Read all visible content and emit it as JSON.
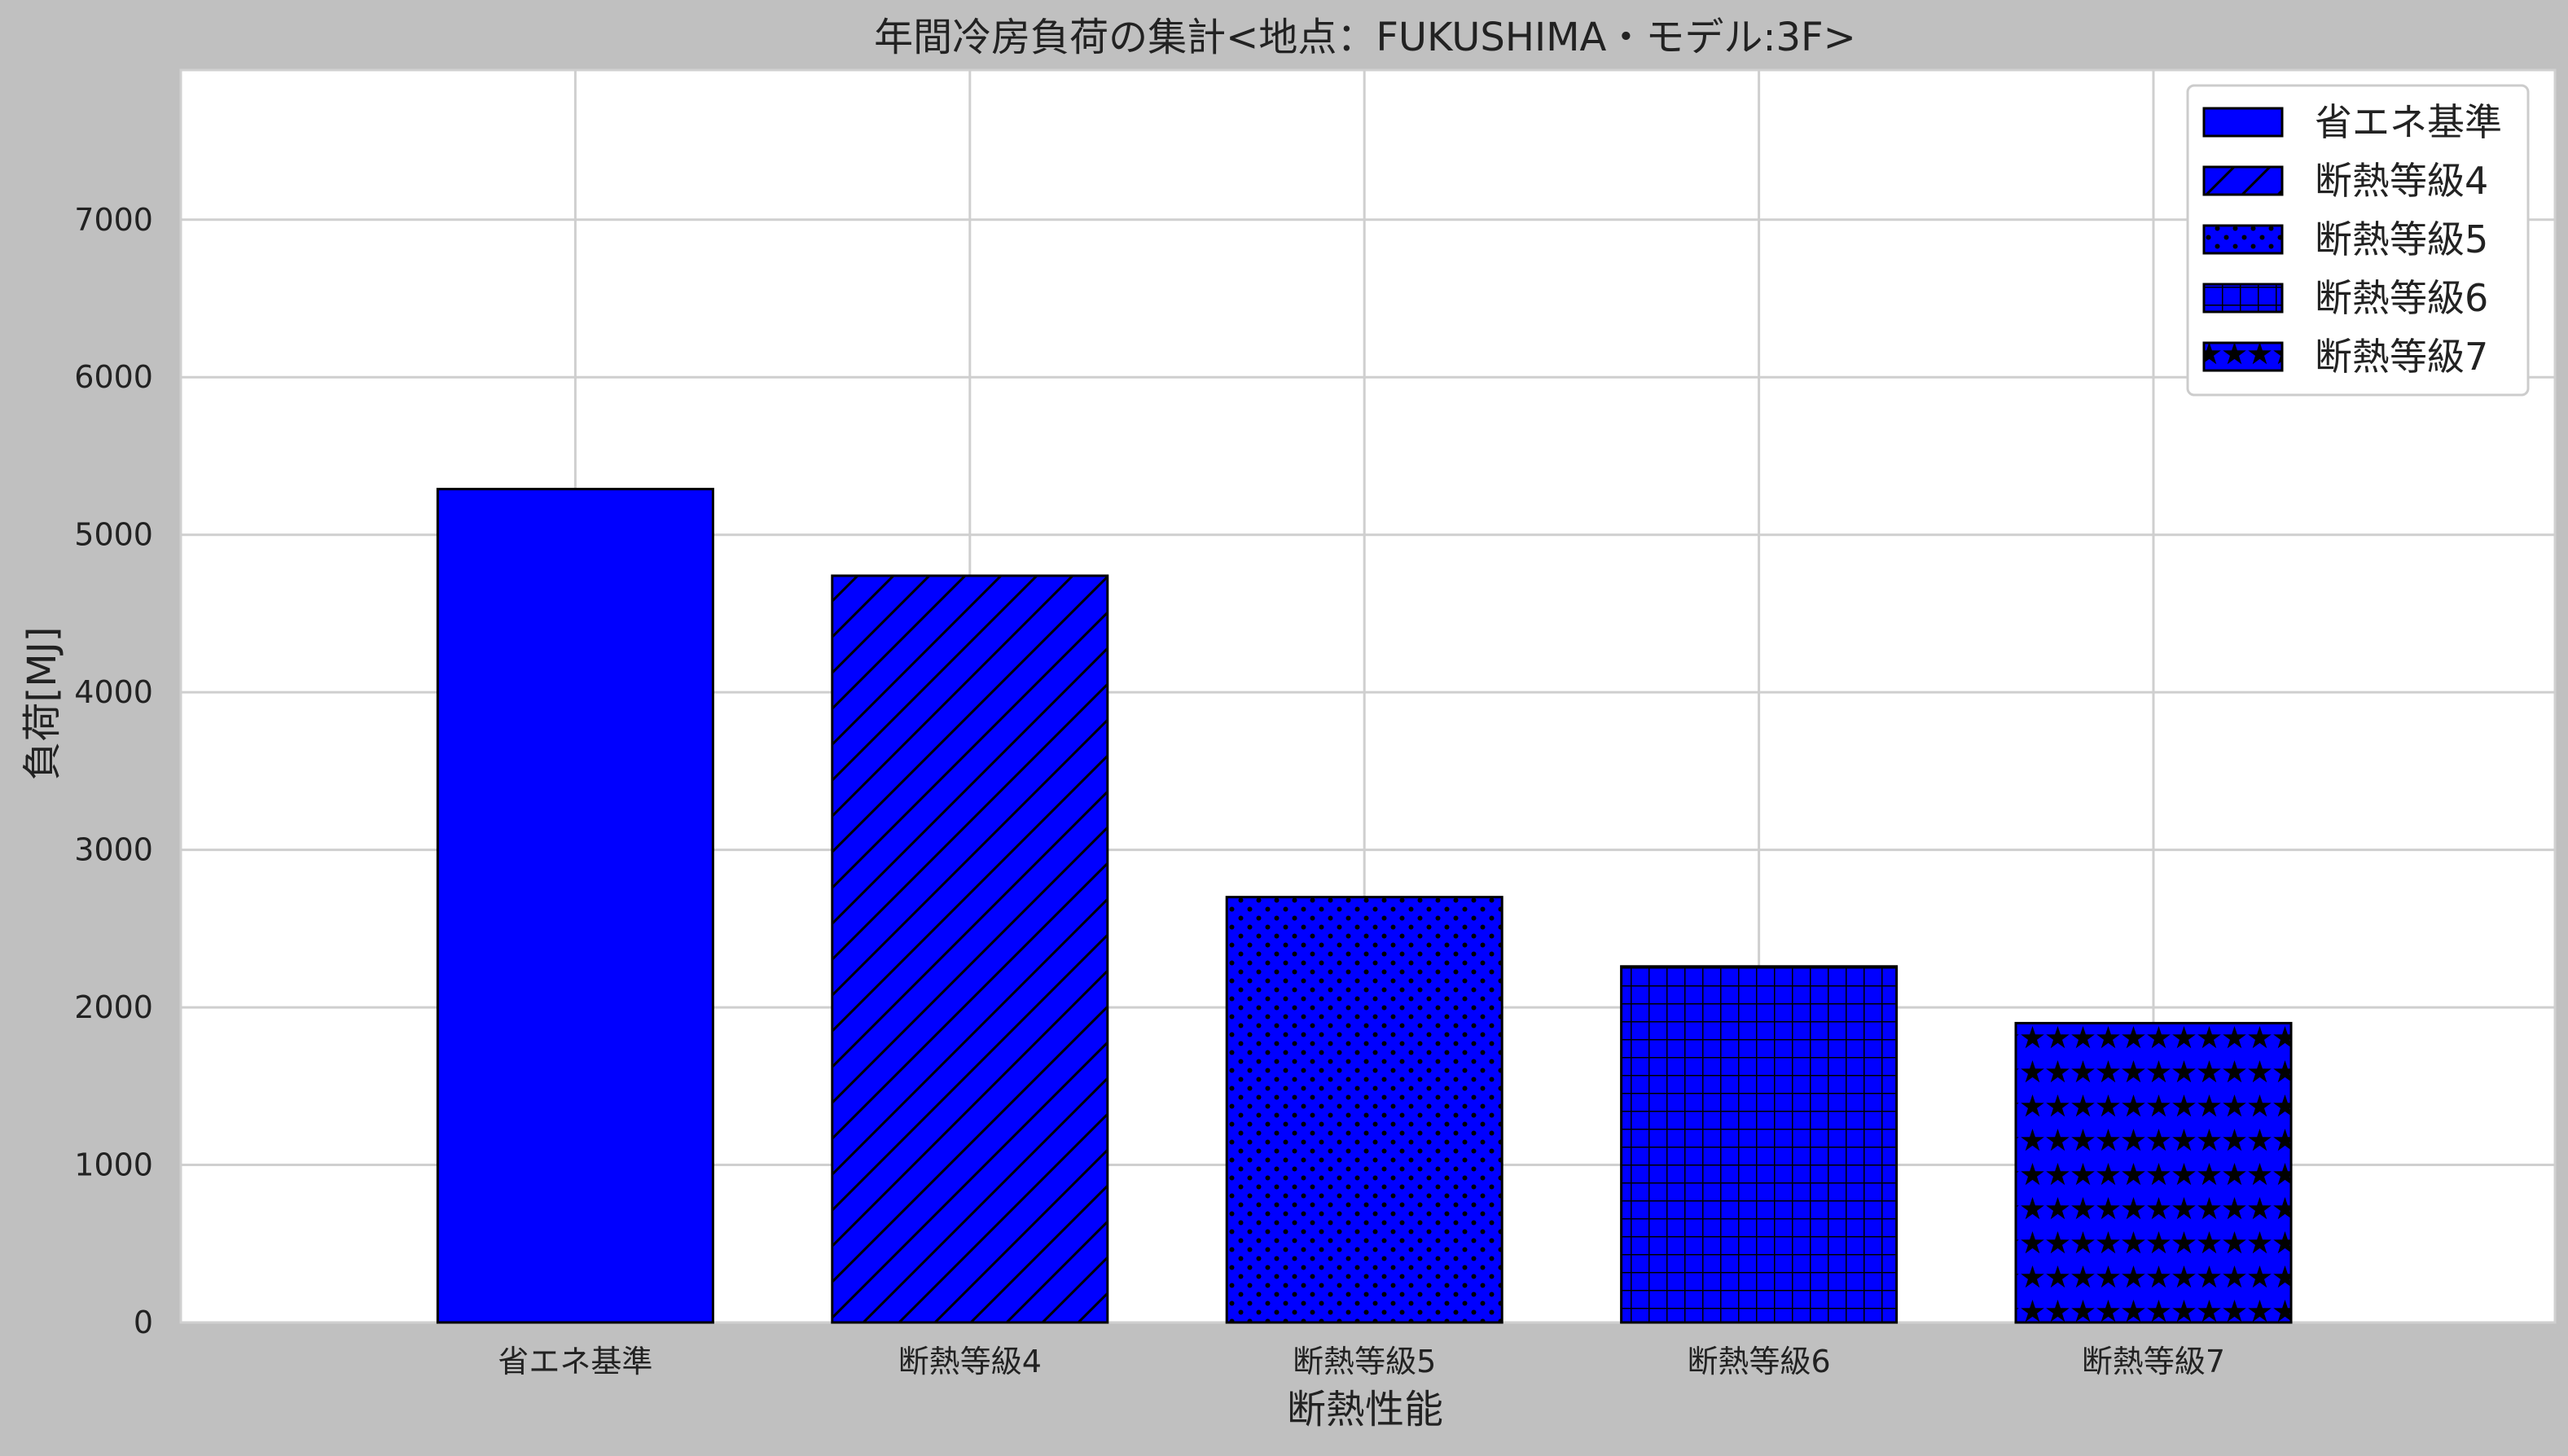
{
  "chart_data": {
    "type": "bar",
    "title": "年間冷房負荷の集計<地点：FUKUSHIMA・モデル:3F>",
    "xlabel": "断熱性能",
    "ylabel": "負荷[MJ]",
    "categories": [
      "省エネ基準",
      "断熱等級4",
      "断熱等級5",
      "断熱等級6",
      "断熱等級7"
    ],
    "values": [
      5290,
      4740,
      2700,
      2260,
      1900
    ],
    "ylim": [
      0,
      7950
    ],
    "yticks": [
      0,
      1000,
      2000,
      3000,
      4000,
      5000,
      6000,
      7000
    ],
    "grid": true,
    "legend_position": "top-right",
    "bar_color": "#0000ff",
    "edge_color": "#000000",
    "hatches": [
      "none",
      "diagonal",
      "dots",
      "grid",
      "stars"
    ],
    "legend": [
      "省エネ基準",
      "断熱等級4",
      "断熱等級5",
      "断熱等級6",
      "断熱等級7"
    ]
  }
}
